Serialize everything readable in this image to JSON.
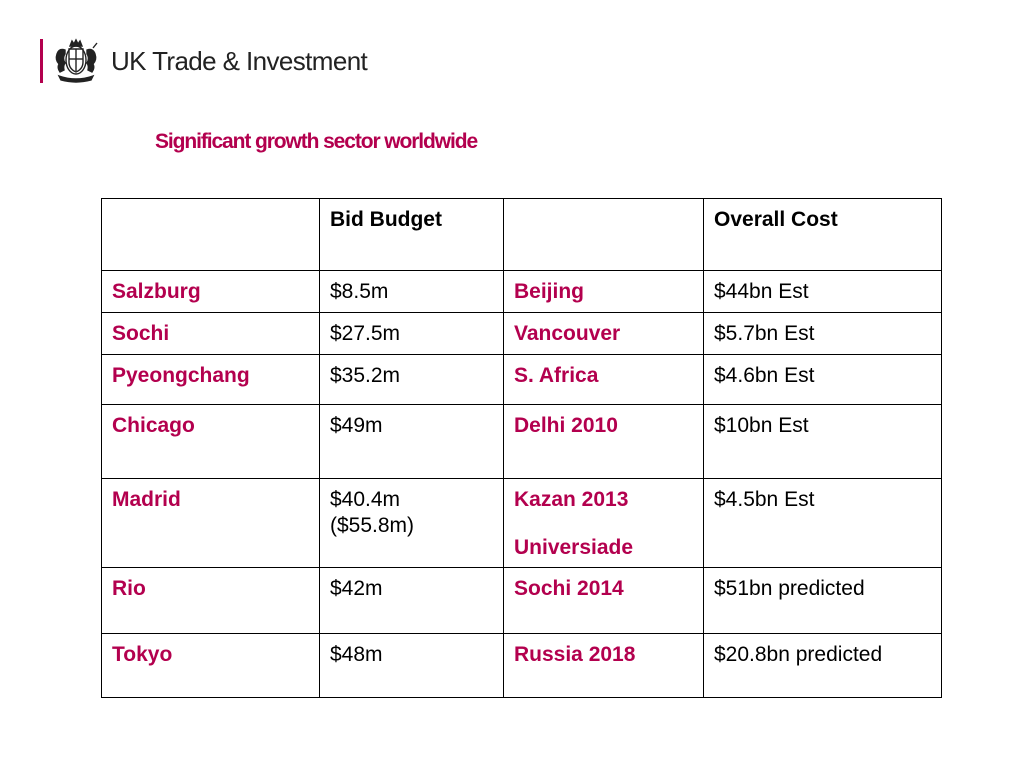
{
  "header": {
    "brand_name": "UK Trade & Investment"
  },
  "slide": {
    "title": "Significant growth sector worldwide"
  },
  "table": {
    "headers": [
      "",
      "Bid Budget",
      "",
      "Overall Cost"
    ],
    "rows": [
      {
        "bid_city": "Salzburg",
        "bid_budget": "$8.5m",
        "event": "Beijing",
        "overall_cost": "$44bn Est"
      },
      {
        "bid_city": "Sochi",
        "bid_budget": "$27.5m",
        "event": "Vancouver",
        "overall_cost": "$5.7bn Est"
      },
      {
        "bid_city": "Pyeongchang",
        "bid_budget": "$35.2m",
        "event": "S. Africa",
        "overall_cost": "$4.6bn Est"
      },
      {
        "bid_city": "Chicago",
        "bid_budget": "$49m",
        "event": "Delhi 2010",
        "overall_cost": "$10bn Est"
      },
      {
        "bid_city": "Madrid",
        "bid_budget": [
          "$40.4m",
          "($55.8m)"
        ],
        "event": [
          "Kazan 2013",
          "Universiade"
        ],
        "overall_cost": "$4.5bn Est"
      },
      {
        "bid_city": "Rio",
        "bid_budget": "$42m",
        "event": "Sochi 2014",
        "overall_cost": "$51bn predicted"
      },
      {
        "bid_city": "Tokyo",
        "bid_budget": "$48m",
        "event": "Russia 2018",
        "overall_cost": "$20.8bn predicted"
      }
    ]
  },
  "colors": {
    "accent": "#b3004e",
    "text": "#000000",
    "brand_text": "#222222"
  },
  "icons": {
    "crest": "royal-coat-of-arms-icon"
  }
}
